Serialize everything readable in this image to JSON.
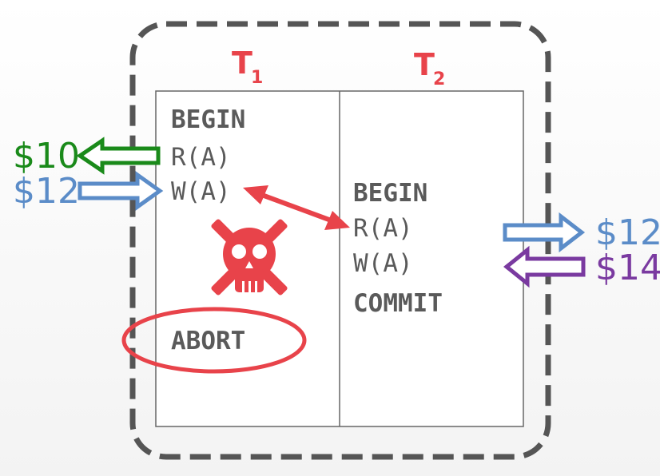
{
  "colors": {
    "accent": "#e8434a",
    "green": "#1a8a1a",
    "blue": "#5b8cc8",
    "purple": "#7a3aa0",
    "border": "#555555",
    "text": "#5a5a5a"
  },
  "txn1": {
    "name": "T",
    "subscript": "1",
    "ops": [
      "BEGIN",
      "R(A)",
      "W(A)"
    ],
    "abort": "ABORT"
  },
  "txn2": {
    "name": "T",
    "subscript": "2",
    "ops": [
      "BEGIN",
      "R(A)",
      "W(A)",
      "COMMIT"
    ]
  },
  "values": {
    "t1_read": "$10",
    "t1_write": "$12",
    "t2_read": "$12",
    "t2_write": "$14"
  },
  "icons": {
    "conflict": "double-arrow-icon",
    "abort": "skull-crossbones-icon"
  }
}
